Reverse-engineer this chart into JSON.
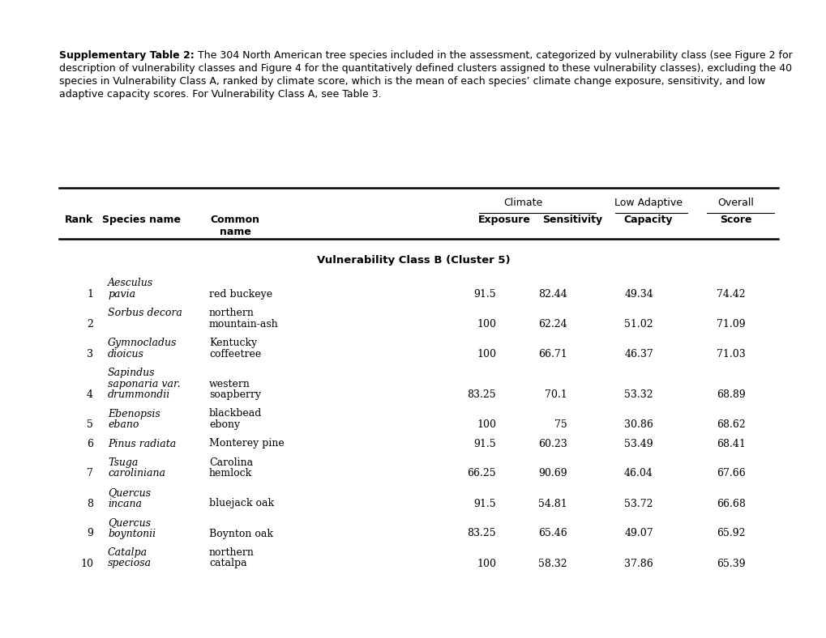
{
  "title_bold": "Supplementary Table 2:",
  "title_normal": " The 304 North American tree species included in the assessment, categorized by vulnerability class (see Figure 2 for description of vulnerability classes and Figure 4 for the quantitatively defined clusters assigned to these vulnerability classes), excluding the 40 species in Vulnerability Class A, ranked by climate score, which is the mean of each species’ climate change exposure, sensitivity, and low adaptive capacity scores. For Vulnerability Class A, see Table 3.",
  "section_header": "Vulnerability Class B (Cluster 5)",
  "rows": [
    {
      "rank": "1",
      "sp1": "Aesculus",
      "sp2": "pavia",
      "sp3": "",
      "cn1": "red buckeye",
      "cn2": "",
      "exposure": "91.5",
      "sensitivity": "82.44",
      "low_adaptive": "49.34",
      "overall": "74.42",
      "n_sp": 2,
      "n_cn": 1,
      "rank_line": 2
    },
    {
      "rank": "2",
      "sp1": "Sorbus decora",
      "sp2": "",
      "sp3": "",
      "cn1": "northern",
      "cn2": "mountain-ash",
      "exposure": "100",
      "sensitivity": "62.24",
      "low_adaptive": "51.02",
      "overall": "71.09",
      "n_sp": 1,
      "n_cn": 2,
      "rank_line": 2
    },
    {
      "rank": "3",
      "sp1": "Gymnocladus",
      "sp2": "dioicus",
      "sp3": "",
      "cn1": "Kentucky",
      "cn2": "coffeetree",
      "exposure": "100",
      "sensitivity": "66.71",
      "low_adaptive": "46.37",
      "overall": "71.03",
      "n_sp": 2,
      "n_cn": 2,
      "rank_line": 2
    },
    {
      "rank": "4",
      "sp1": "Sapindus",
      "sp2": "saponaria var.",
      "sp3": "drummondii",
      "cn1": "western",
      "cn2": "soapberry",
      "exposure": "83.25",
      "sensitivity": "70.1",
      "low_adaptive": "53.32",
      "overall": "68.89",
      "n_sp": 3,
      "n_cn": 2,
      "rank_line": 3
    },
    {
      "rank": "5",
      "sp1": "Ebenopsis",
      "sp2": "ebano",
      "sp3": "",
      "cn1": "blackbead",
      "cn2": "ebony",
      "exposure": "100",
      "sensitivity": "75",
      "low_adaptive": "30.86",
      "overall": "68.62",
      "n_sp": 2,
      "n_cn": 2,
      "rank_line": 2
    },
    {
      "rank": "6",
      "sp1": "Pinus radiata",
      "sp2": "",
      "sp3": "",
      "cn1": "Monterey pine",
      "cn2": "",
      "exposure": "91.5",
      "sensitivity": "60.23",
      "low_adaptive": "53.49",
      "overall": "68.41",
      "n_sp": 1,
      "n_cn": 1,
      "rank_line": 1
    },
    {
      "rank": "7",
      "sp1": "Tsuga",
      "sp2": "caroliniana",
      "sp3": "",
      "cn1": "Carolina",
      "cn2": "hemlock",
      "exposure": "66.25",
      "sensitivity": "90.69",
      "low_adaptive": "46.04",
      "overall": "67.66",
      "n_sp": 2,
      "n_cn": 2,
      "rank_line": 2
    },
    {
      "rank": "8",
      "sp1": "Quercus",
      "sp2": "incana",
      "sp3": "",
      "cn1": "bluejack oak",
      "cn2": "",
      "exposure": "91.5",
      "sensitivity": "54.81",
      "low_adaptive": "53.72",
      "overall": "66.68",
      "n_sp": 2,
      "n_cn": 1,
      "rank_line": 2
    },
    {
      "rank": "9",
      "sp1": "Quercus",
      "sp2": "boyntonii",
      "sp3": "",
      "cn1": "Boynton oak",
      "cn2": "",
      "exposure": "83.25",
      "sensitivity": "65.46",
      "low_adaptive": "49.07",
      "overall": "65.92",
      "n_sp": 2,
      "n_cn": 1,
      "rank_line": 2
    },
    {
      "rank": "10",
      "sp1": "Catalpa",
      "sp2": "speciosa",
      "sp3": "",
      "cn1": "northern",
      "cn2": "catalpa",
      "exposure": "100",
      "sensitivity": "58.32",
      "low_adaptive": "37.86",
      "overall": "65.39",
      "n_sp": 2,
      "n_cn": 2,
      "rank_line": 2
    }
  ],
  "bg_color": "#ffffff",
  "text_color": "#000000"
}
